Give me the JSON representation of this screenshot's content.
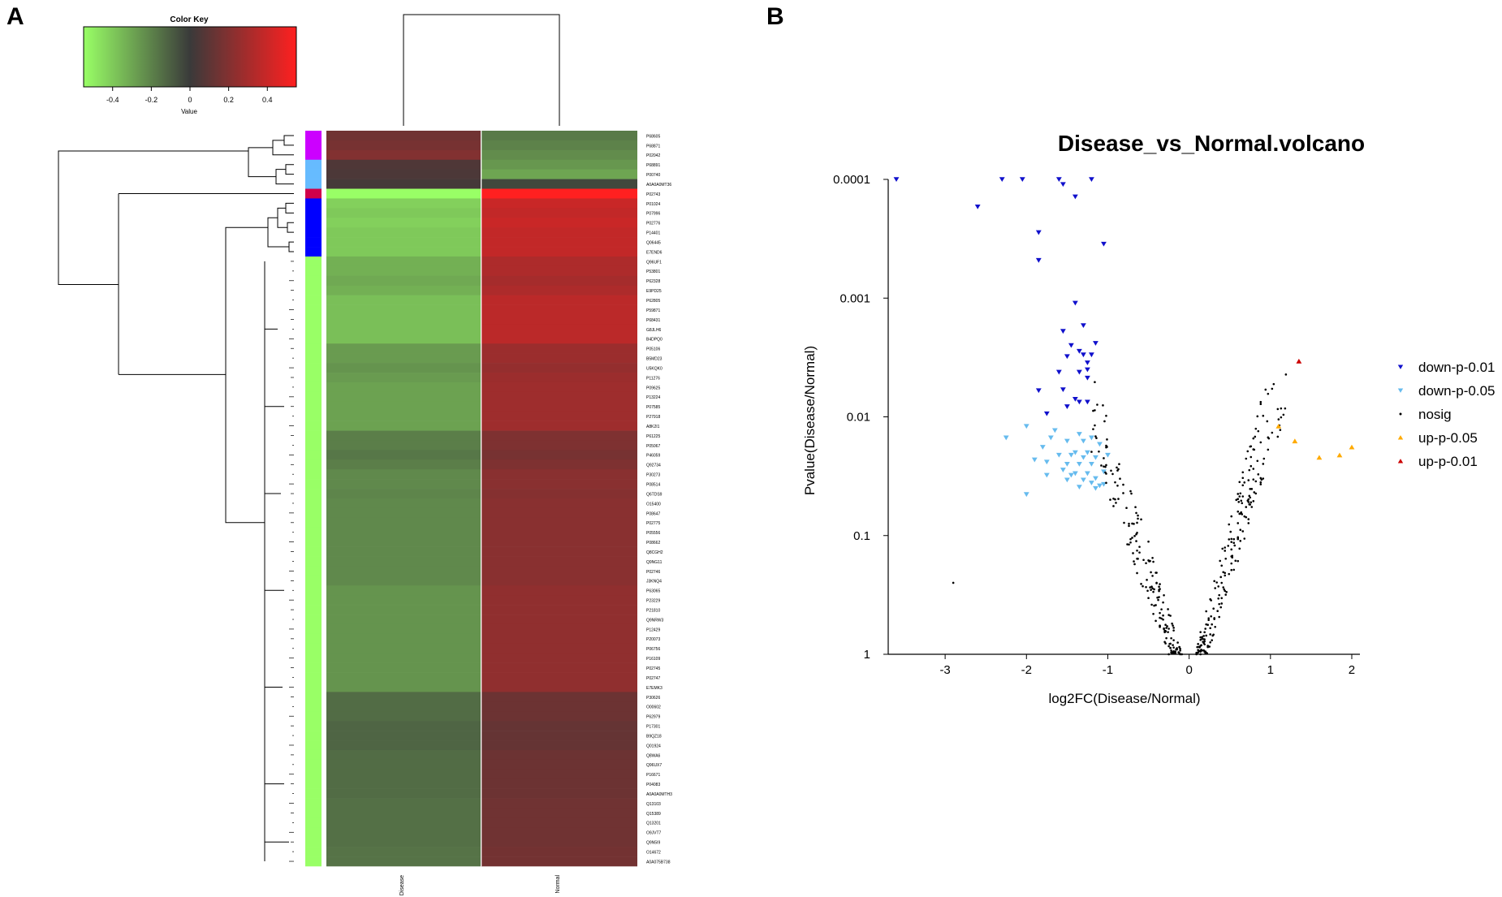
{
  "panels": {
    "a_label": "A",
    "b_label": "B"
  },
  "colors": {
    "low": "#99ff66",
    "mid": "#3a3a3a",
    "high": "#ff2020",
    "clusters": [
      "#cc00ff",
      "#66bbff",
      "#d0004a",
      "#0000ff",
      "#99ff66"
    ],
    "down_001": "#1010cc",
    "down_005": "#66bbee",
    "nosig": "#000000",
    "up_005": "#ffaa00",
    "up_001": "#cc0000"
  },
  "color_key": {
    "title": "Color Key",
    "xlabel": "Value",
    "ticks": [
      "-0.4",
      "-0.2",
      "0",
      "0.2",
      "0.4"
    ],
    "tick_values": [
      -0.4,
      -0.2,
      0,
      0.2,
      0.4
    ],
    "range": [
      -0.55,
      0.55
    ]
  },
  "chart_data": [
    {
      "type": "heatmap",
      "columns": [
        "Disease",
        "Normal"
      ],
      "rows": [
        "P68605",
        "P68871",
        "P02042",
        "P68891",
        "P00740",
        "A0A0A0MT36",
        "P02743",
        "P01024",
        "P07996",
        "P02776",
        "P14401",
        "Q06445",
        "E7END6",
        "Q96UF1",
        "P53801",
        "P62328",
        "E9PD25",
        "P62805",
        "P59871",
        "P68431",
        "G8JLH6",
        "B4DPQ0",
        "P05106",
        "B5MD23",
        "U5KQK0",
        "P11276",
        "P09625",
        "P13224",
        "P07585",
        "P27918",
        "A8K2I1",
        "P61225",
        "P05067",
        "P46059",
        "Q92734",
        "P30273",
        "P08514",
        "Q6TDS9",
        "O15400",
        "P08647",
        "P02775",
        "P05556",
        "P08662",
        "Q8CGH2",
        "Q9NG11",
        "P02746",
        "J3KNQ4",
        "P63065",
        "P23229",
        "P21810",
        "Q9NRW3",
        "P12429",
        "P20073",
        "P06756",
        "P16109",
        "P02745",
        "P02747",
        "E7EMK3",
        "P30626",
        "O00602",
        "P62979",
        "P17301",
        "B9QZ18",
        "Q01924",
        "Q8WA6",
        "Q96UX7",
        "P16671",
        "P04083",
        "A0A0A0MTH3",
        "Q13103",
        "Q15389",
        "Q13201",
        "O9JVT7",
        "Q9N5I9",
        "O14672",
        "A0A075B738"
      ],
      "values": [
        [
          0.15,
          -0.18
        ],
        [
          0.17,
          -0.2
        ],
        [
          0.2,
          -0.23
        ],
        [
          0.06,
          -0.26
        ],
        [
          0.05,
          -0.3
        ],
        [
          0.03,
          -0.04
        ],
        [
          -0.55,
          0.55
        ],
        [
          -0.42,
          0.4
        ],
        [
          -0.4,
          0.38
        ],
        [
          -0.42,
          0.4
        ],
        [
          -0.4,
          0.38
        ],
        [
          -0.4,
          0.38
        ],
        [
          -0.4,
          0.38
        ],
        [
          -0.33,
          0.32
        ],
        [
          -0.33,
          0.32
        ],
        [
          -0.31,
          0.3
        ],
        [
          -0.33,
          0.32
        ],
        [
          -0.37,
          0.36
        ],
        [
          -0.37,
          0.36
        ],
        [
          -0.37,
          0.36
        ],
        [
          -0.37,
          0.36
        ],
        [
          -0.37,
          0.36
        ],
        [
          -0.27,
          0.27
        ],
        [
          -0.27,
          0.27
        ],
        [
          -0.25,
          0.25
        ],
        [
          -0.27,
          0.27
        ],
        [
          -0.29,
          0.28
        ],
        [
          -0.29,
          0.28
        ],
        [
          -0.29,
          0.28
        ],
        [
          -0.29,
          0.28
        ],
        [
          -0.29,
          0.28
        ],
        [
          -0.19,
          0.19
        ],
        [
          -0.19,
          0.19
        ],
        [
          -0.17,
          0.17
        ],
        [
          -0.19,
          0.19
        ],
        [
          -0.22,
          0.22
        ],
        [
          -0.22,
          0.22
        ],
        [
          -0.21,
          0.21
        ],
        [
          -0.22,
          0.22
        ],
        [
          -0.22,
          0.22
        ],
        [
          -0.22,
          0.22
        ],
        [
          -0.22,
          0.22
        ],
        [
          -0.22,
          0.22
        ],
        [
          -0.22,
          0.22
        ],
        [
          -0.22,
          0.22
        ],
        [
          -0.22,
          0.22
        ],
        [
          -0.22,
          0.22
        ],
        [
          -0.25,
          0.24
        ],
        [
          -0.25,
          0.24
        ],
        [
          -0.25,
          0.24
        ],
        [
          -0.25,
          0.24
        ],
        [
          -0.25,
          0.24
        ],
        [
          -0.25,
          0.24
        ],
        [
          -0.25,
          0.24
        ],
        [
          -0.25,
          0.24
        ],
        [
          -0.25,
          0.24
        ],
        [
          -0.25,
          0.24
        ],
        [
          -0.25,
          0.24
        ],
        [
          -0.14,
          0.14
        ],
        [
          -0.14,
          0.14
        ],
        [
          -0.14,
          0.14
        ],
        [
          -0.12,
          0.12
        ],
        [
          -0.12,
          0.12
        ],
        [
          -0.12,
          0.12
        ],
        [
          -0.14,
          0.14
        ],
        [
          -0.14,
          0.14
        ],
        [
          -0.14,
          0.14
        ],
        [
          -0.14,
          0.14
        ],
        [
          -0.14,
          0.14
        ],
        [
          -0.15,
          0.15
        ],
        [
          -0.15,
          0.15
        ],
        [
          -0.15,
          0.15
        ],
        [
          -0.15,
          0.15
        ],
        [
          -0.15,
          0.15
        ],
        [
          -0.16,
          0.16
        ],
        [
          -0.16,
          0.16
        ]
      ],
      "row_clusters": [
        0,
        0,
        0,
        1,
        1,
        1,
        2,
        3,
        3,
        3,
        3,
        3,
        3,
        4,
        4,
        4,
        4,
        4,
        4,
        4,
        4,
        4,
        4,
        4,
        4,
        4,
        4,
        4,
        4,
        4,
        4,
        4,
        4,
        4,
        4,
        4,
        4,
        4,
        4,
        4,
        4,
        4,
        4,
        4,
        4,
        4,
        4,
        4,
        4,
        4,
        4,
        4,
        4,
        4,
        4,
        4,
        4,
        4,
        4,
        4,
        4,
        4,
        4,
        4,
        4,
        4,
        4,
        4,
        4,
        4,
        4,
        4,
        4,
        4,
        4,
        4
      ]
    },
    {
      "type": "scatter",
      "title": "Disease_vs_Normal.volcano",
      "xlabel": "log2FC(Disease/Normal)",
      "ylabel": "Pvalue(Disease/Normal)",
      "xlim": [
        -3.7,
        2.1
      ],
      "ylim": [
        0.0001,
        1
      ],
      "y_scale": "log10-reversed",
      "x_ticks": [
        -3,
        -2,
        -1,
        0,
        1,
        2
      ],
      "y_ticks": [
        0.0001,
        0.001,
        0.01,
        0.1,
        1
      ],
      "y_tick_labels": [
        "0.0001",
        "0.001",
        "0.01",
        "0.1",
        "1"
      ],
      "legend_position": "right",
      "series": [
        {
          "name": "down-p-0.01",
          "marker": "triangle-down",
          "color": "#1010cc",
          "points": [
            [
              -3.6,
              0.0001
            ],
            [
              -2.3,
              0.0001
            ],
            [
              -2.05,
              0.0001
            ],
            [
              -1.6,
              0.0001
            ],
            [
              -1.2,
              0.0001
            ],
            [
              -1.55,
              0.00011
            ],
            [
              -1.4,
              0.00014
            ],
            [
              -2.6,
              0.00017
            ],
            [
              -1.85,
              0.00028
            ],
            [
              -1.05,
              0.00035
            ],
            [
              -1.85,
              0.00048
            ],
            [
              -1.4,
              0.0011
            ],
            [
              -1.3,
              0.0017
            ],
            [
              -1.55,
              0.0019
            ],
            [
              -1.45,
              0.0025
            ],
            [
              -1.15,
              0.0024
            ],
            [
              -1.3,
              0.003
            ],
            [
              -1.2,
              0.003
            ],
            [
              -1.5,
              0.0031
            ],
            [
              -1.35,
              0.0028
            ],
            [
              -1.25,
              0.0035
            ],
            [
              -1.6,
              0.0042
            ],
            [
              -1.35,
              0.0042
            ],
            [
              -1.25,
              0.004
            ],
            [
              -1.25,
              0.0047
            ],
            [
              -1.85,
              0.006
            ],
            [
              -1.55,
              0.0059
            ],
            [
              -1.35,
              0.0075
            ],
            [
              -1.4,
              0.0071
            ],
            [
              -1.5,
              0.0082
            ],
            [
              -1.25,
              0.0075
            ],
            [
              -1.75,
              0.0094
            ]
          ]
        },
        {
          "name": "down-p-0.05",
          "marker": "triangle-down",
          "color": "#66bbee",
          "points": [
            [
              -2.0,
              0.012
            ],
            [
              -1.65,
              0.013
            ],
            [
              -1.35,
              0.014
            ],
            [
              -1.2,
              0.015
            ],
            [
              -1.7,
              0.015
            ],
            [
              -1.5,
              0.016
            ],
            [
              -1.3,
              0.016
            ],
            [
              -1.1,
              0.017
            ],
            [
              -2.25,
              0.015
            ],
            [
              -1.8,
              0.018
            ],
            [
              -1.4,
              0.02
            ],
            [
              -1.25,
              0.02
            ],
            [
              -1.6,
              0.021
            ],
            [
              -1.45,
              0.021
            ],
            [
              -1.3,
              0.022
            ],
            [
              -1.15,
              0.022
            ],
            [
              -1.0,
              0.021
            ],
            [
              -1.9,
              0.023
            ],
            [
              -1.75,
              0.024
            ],
            [
              -1.5,
              0.025
            ],
            [
              -1.35,
              0.025
            ],
            [
              -1.2,
              0.025
            ],
            [
              -1.55,
              0.028
            ],
            [
              -1.4,
              0.03
            ],
            [
              -1.25,
              0.03
            ],
            [
              -1.05,
              0.029
            ],
            [
              -1.75,
              0.031
            ],
            [
              -1.45,
              0.031
            ],
            [
              -1.15,
              0.033
            ],
            [
              -1.3,
              0.034
            ],
            [
              -1.5,
              0.034
            ],
            [
              -1.2,
              0.036
            ],
            [
              -1.1,
              0.038
            ],
            [
              -1.35,
              0.039
            ],
            [
              -1.05,
              0.037
            ],
            [
              -1.15,
              0.04
            ],
            [
              -2.0,
              0.045
            ]
          ]
        },
        {
          "name": "nosig",
          "marker": "dot",
          "color": "#000000",
          "points": []
        },
        {
          "name": "up-p-0.05",
          "marker": "triangle-up",
          "color": "#ffaa00",
          "points": [
            [
              1.1,
              0.012
            ],
            [
              1.3,
              0.016
            ],
            [
              1.6,
              0.022
            ],
            [
              1.85,
              0.021
            ],
            [
              2.0,
              0.018
            ]
          ]
        },
        {
          "name": "up-p-0.01",
          "marker": "triangle-up",
          "color": "#cc0000",
          "points": [
            [
              1.35,
              0.0034
            ]
          ]
        }
      ]
    }
  ]
}
